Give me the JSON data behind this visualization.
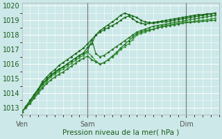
{
  "xlabel": "Pression niveau de la mer( hPa )",
  "ylabel": "",
  "bg_color": "#cce8e8",
  "grid_color": "#ffffff",
  "ylim": [
    1012.5,
    1020.2
  ],
  "xlim": [
    0,
    48
  ],
  "yticks": [
    1013,
    1014,
    1015,
    1016,
    1017,
    1018,
    1019,
    1020
  ],
  "xtick_positions": [
    0,
    16,
    40
  ],
  "xtick_labels": [
    "Ven",
    "Sam",
    "Dim"
  ],
  "vline_positions": [
    16,
    40
  ],
  "series": [
    [
      1012.7,
      1013.1,
      1013.5,
      1013.9,
      1014.3,
      1014.8,
      1015.1,
      1015.4,
      1015.6,
      1015.9,
      1016.1,
      1016.3,
      1016.5,
      1016.7,
      1016.9,
      1017.1,
      1017.4,
      1017.7,
      1018.0,
      1018.3,
      1018.5,
      1018.7,
      1018.9,
      1019.1,
      1019.35,
      1019.5,
      1019.4,
      1019.3,
      1019.2,
      1019.0,
      1018.9,
      1018.85,
      1018.8,
      1018.85,
      1018.9,
      1018.9,
      1018.95,
      1019.0,
      1019.05,
      1019.1,
      1019.15,
      1019.2,
      1019.25,
      1019.3,
      1019.35,
      1019.4,
      1019.45,
      1019.5
    ],
    [
      1012.7,
      1013.05,
      1013.4,
      1013.8,
      1014.2,
      1014.6,
      1014.9,
      1015.2,
      1015.4,
      1015.6,
      1015.8,
      1016.0,
      1016.2,
      1016.4,
      1016.6,
      1016.7,
      1016.9,
      1017.7,
      1016.7,
      1016.5,
      1016.6,
      1016.8,
      1017.0,
      1017.2,
      1017.4,
      1017.6,
      1017.8,
      1018.0,
      1018.2,
      1018.3,
      1018.4,
      1018.5,
      1018.6,
      1018.65,
      1018.7,
      1018.75,
      1018.8,
      1018.85,
      1018.9,
      1018.95,
      1019.0,
      1019.05,
      1019.1,
      1019.15,
      1019.2,
      1019.25,
      1019.3,
      1019.35
    ],
    [
      1012.7,
      1013.0,
      1013.35,
      1013.7,
      1014.1,
      1014.45,
      1014.8,
      1015.1,
      1015.3,
      1015.5,
      1015.65,
      1015.85,
      1016.05,
      1016.25,
      1016.45,
      1016.6,
      1016.8,
      1016.55,
      1016.2,
      1016.0,
      1016.1,
      1016.3,
      1016.5,
      1016.7,
      1017.0,
      1017.2,
      1017.4,
      1017.7,
      1018.0,
      1018.1,
      1018.2,
      1018.3,
      1018.4,
      1018.5,
      1018.6,
      1018.65,
      1018.7,
      1018.75,
      1018.8,
      1018.85,
      1018.9,
      1018.9,
      1018.95,
      1019.0,
      1019.0,
      1019.05,
      1019.1,
      1019.15
    ],
    [
      1012.7,
      1013.1,
      1013.5,
      1013.9,
      1014.3,
      1014.65,
      1014.95,
      1015.25,
      1015.45,
      1015.65,
      1015.8,
      1016.0,
      1016.2,
      1016.4,
      1016.6,
      1016.75,
      1017.15,
      1017.4,
      1018.0,
      1018.2,
      1018.35,
      1018.5,
      1018.65,
      1018.8,
      1019.0,
      1019.2,
      1019.3,
      1019.1,
      1018.9,
      1018.8,
      1018.75,
      1018.8,
      1018.85,
      1018.9,
      1018.95,
      1019.0,
      1019.05,
      1019.1,
      1019.15,
      1019.2,
      1019.25,
      1019.3,
      1019.35,
      1019.4,
      1019.4,
      1019.45,
      1019.45,
      1019.5
    ],
    [
      1012.7,
      1013.0,
      1013.3,
      1013.65,
      1014.0,
      1014.35,
      1014.65,
      1014.9,
      1015.1,
      1015.3,
      1015.45,
      1015.65,
      1015.85,
      1016.05,
      1016.25,
      1016.4,
      1016.55,
      1016.3,
      1016.15,
      1016.0,
      1016.1,
      1016.3,
      1016.55,
      1016.8,
      1017.1,
      1017.35,
      1017.6,
      1017.85,
      1018.1,
      1018.2,
      1018.3,
      1018.35,
      1018.4,
      1018.5,
      1018.55,
      1018.6,
      1018.65,
      1018.7,
      1018.75,
      1018.8,
      1018.85,
      1018.85,
      1018.9,
      1018.9,
      1018.95,
      1018.95,
      1019.0,
      1019.0
    ]
  ],
  "marker": "D",
  "marker_size": 2.0,
  "linewidth": 0.9,
  "colors": [
    "#1a6b1a",
    "#2a7a2a",
    "#3d9c3d",
    "#1a6b1a",
    "#2a7a2a"
  ]
}
